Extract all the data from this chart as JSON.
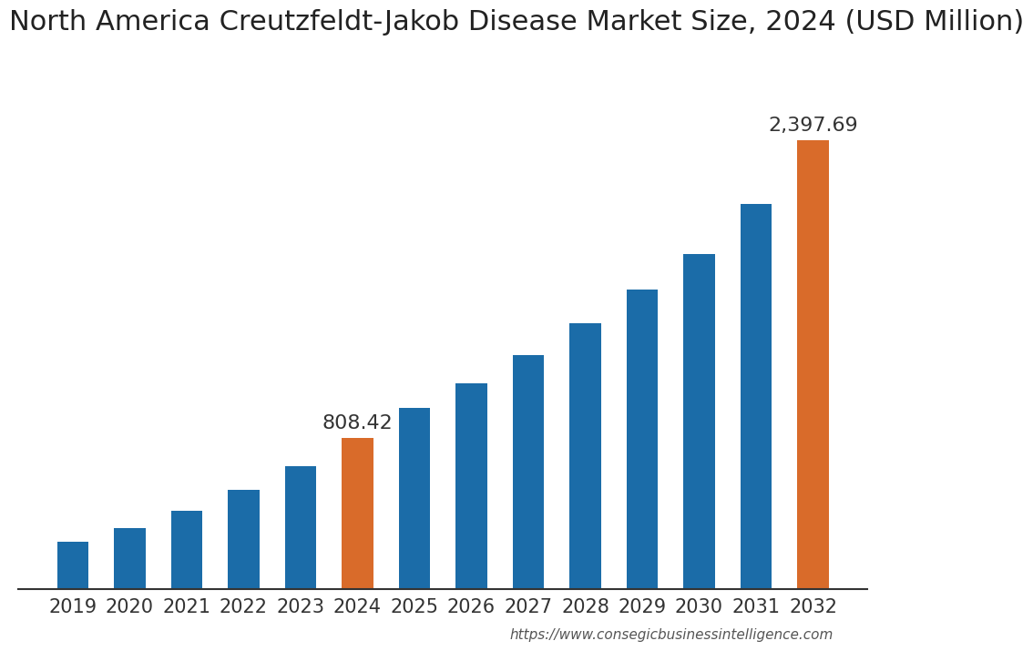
{
  "title": "North America Creutzfeldt-Jakob Disease Market Size, 2024 (USD Million)",
  "categories": [
    "2019",
    "2020",
    "2021",
    "2022",
    "2023",
    "2024",
    "2025",
    "2026",
    "2027",
    "2028",
    "2029",
    "2030",
    "2031",
    "2032"
  ],
  "values": [
    255,
    330,
    420,
    530,
    660,
    808.42,
    970,
    1100,
    1250,
    1420,
    1600,
    1790,
    2060,
    2397.69
  ],
  "bar_colors": [
    "#1b6ca8",
    "#1b6ca8",
    "#1b6ca8",
    "#1b6ca8",
    "#1b6ca8",
    "#d96b2a",
    "#1b6ca8",
    "#1b6ca8",
    "#1b6ca8",
    "#1b6ca8",
    "#1b6ca8",
    "#1b6ca8",
    "#1b6ca8",
    "#d96b2a"
  ],
  "labeled_bars": [
    5,
    13
  ],
  "labeled_values": [
    "808.42",
    "2,397.69"
  ],
  "background_color": "#ffffff",
  "title_fontsize": 22,
  "tick_fontsize": 15,
  "label_fontsize": 16,
  "website": "https://www.consegicbusinessintelligence.com",
  "ylim": [
    0,
    2800
  ]
}
